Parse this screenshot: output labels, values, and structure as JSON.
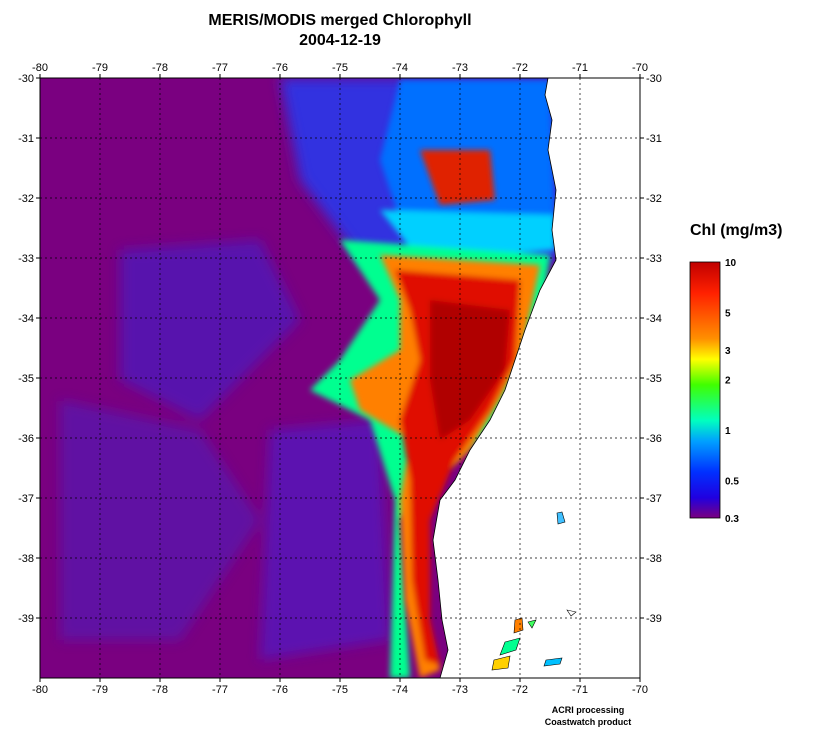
{
  "title": "MERIS/MODIS merged Chlorophyll",
  "date": "2004-12-19",
  "lon_ticks": [
    "-80",
    "-79",
    "-78",
    "-77",
    "-76",
    "-75",
    "-74",
    "-73",
    "-72",
    "-71",
    "-70"
  ],
  "lat_ticks": [
    "-30",
    "-31",
    "-32",
    "-33",
    "-34",
    "-35",
    "-36",
    "-37",
    "-38",
    "-39"
  ],
  "colorbar": {
    "title": "Chl (mg/m3)",
    "labels": [
      "10",
      "5",
      "3",
      "2",
      "1",
      "0.5",
      "0.3"
    ],
    "colors": [
      "#c00000",
      "#ff2000",
      "#ff9000",
      "#ffff00",
      "#40ff00",
      "#00ffc0",
      "#00a0ff",
      "#0030ff",
      "#2000e0",
      "#5a00b0",
      "#7a0080"
    ]
  },
  "colors": {
    "ocean": "#7a0080",
    "land": "#ffffff",
    "grid": "#000000"
  },
  "credits": {
    "line1": "ACRI processing",
    "line2": "Coastwatch product"
  }
}
